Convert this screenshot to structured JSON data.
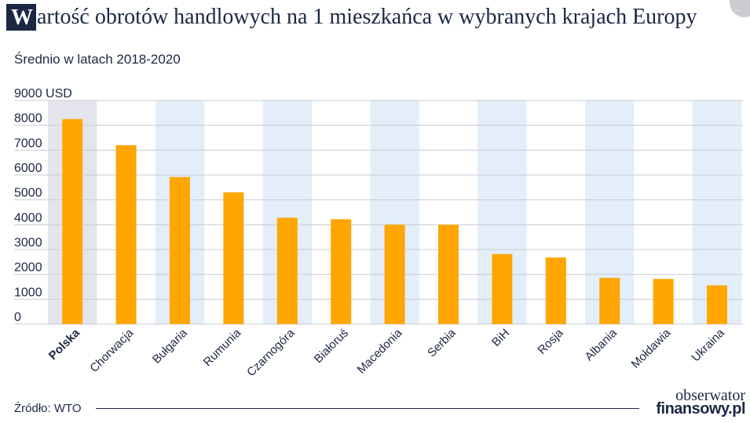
{
  "header": {
    "title_initial": "W",
    "title_rest": "artość obrotów handlowych na 1 mieszkańca w wybranych krajach Europy",
    "subtitle": "Średnio w latach 2018-2020"
  },
  "footer": {
    "source": "Źródło: WTO",
    "logo_top": "obserwator",
    "logo_bottom": "finansowy.pl"
  },
  "colors": {
    "bar": "#ffa600",
    "highlight_band": "#e4e4ec",
    "alt_band": "#e3eef8",
    "grid": "#c9ccd3",
    "text": "#1c2744"
  },
  "chart_data": {
    "type": "bar",
    "title": "Wartość obrotów handlowych na 1 mieszkańca w wybranych krajach Europy",
    "subtitle": "Średnio w latach 2018-2020",
    "categories": [
      "Polska",
      "Chorwacja",
      "Bułgaria",
      "Rumunia",
      "Czarnogóra",
      "Białoruś",
      "Macedonia",
      "Serbia",
      "BiH",
      "Rosja",
      "Albania",
      "Mołdawia",
      "Ukraina"
    ],
    "values": [
      8250,
      7200,
      5920,
      5300,
      4280,
      4220,
      4000,
      4000,
      2820,
      2680,
      1860,
      1820,
      1560
    ],
    "highlighted_category": "Polska",
    "y_ticks": [
      "0",
      "1000",
      "2000",
      "3000",
      "4000",
      "5000",
      "6000",
      "7000",
      "8000",
      "9000 USD"
    ],
    "ylim": [
      0,
      9000
    ],
    "grid": true,
    "legend": "none"
  }
}
